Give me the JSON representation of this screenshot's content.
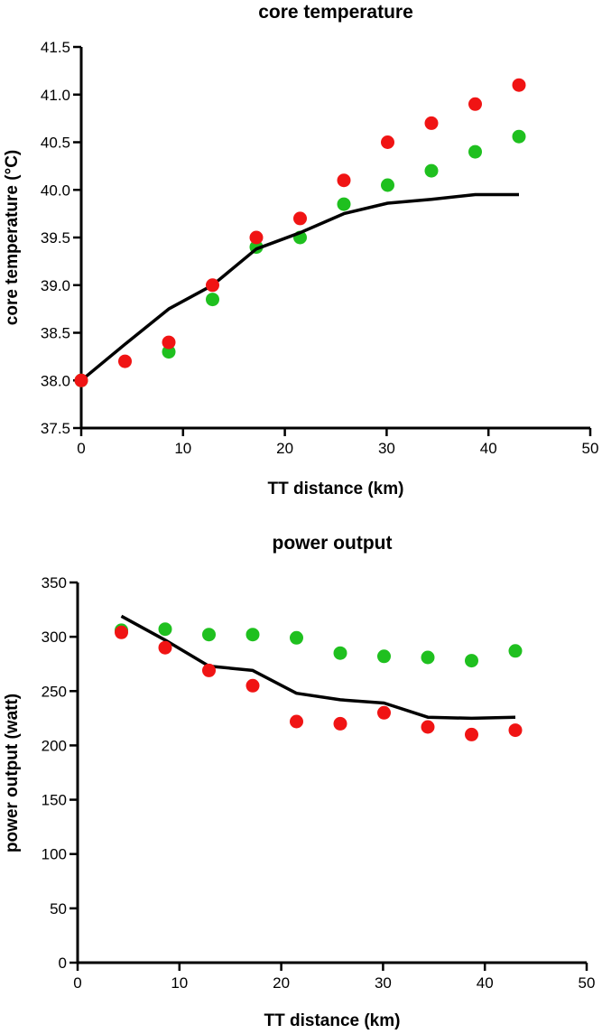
{
  "colors": {
    "green": "#1fc01f",
    "red": "#f01414",
    "line": "#000000"
  },
  "chart_data": [
    {
      "type": "scatter",
      "title": "core temperature",
      "xlabel": "TT distance (km)",
      "ylabel": "core temperature (°C)",
      "xlim": [
        0,
        50
      ],
      "ylim": [
        37.5,
        41.5
      ],
      "xticks": [
        "0",
        "10",
        "20",
        "30",
        "40",
        "50"
      ],
      "yticks": [
        "37.5",
        "38.0",
        "38.5",
        "39.0",
        "39.5",
        "40.0",
        "40.5",
        "41.0",
        "41.5"
      ],
      "series": [
        {
          "name": "green",
          "kind": "points",
          "x": [
            0,
            8.6,
            12.9,
            17.2,
            21.5,
            25.8,
            30.1,
            34.4,
            38.7,
            43
          ],
          "y": [
            38.0,
            38.3,
            38.85,
            39.4,
            39.5,
            39.85,
            40.05,
            40.2,
            40.4,
            40.56
          ]
        },
        {
          "name": "red",
          "kind": "points",
          "x": [
            0,
            4.3,
            8.6,
            12.9,
            17.2,
            21.5,
            25.8,
            30.1,
            34.4,
            38.7,
            43
          ],
          "y": [
            38.0,
            38.2,
            38.4,
            39.0,
            39.5,
            39.7,
            40.1,
            40.5,
            40.7,
            40.9,
            41.1
          ]
        },
        {
          "name": "model",
          "kind": "line",
          "x": [
            0,
            4.3,
            8.6,
            12.9,
            17.2,
            21.5,
            25.8,
            30.1,
            34.4,
            38.7,
            43
          ],
          "y": [
            38.0,
            38.38,
            38.75,
            39.0,
            39.38,
            39.55,
            39.75,
            39.86,
            39.9,
            39.95,
            39.95
          ]
        }
      ]
    },
    {
      "type": "scatter",
      "title": "power output",
      "xlabel": "TT distance (km)",
      "ylabel": "power output  (watt)",
      "xlim": [
        0,
        50
      ],
      "ylim": [
        0,
        350
      ],
      "xticks": [
        "0",
        "10",
        "20",
        "30",
        "40",
        "50"
      ],
      "yticks": [
        "0",
        "50",
        "100",
        "150",
        "200",
        "250",
        "300",
        "350"
      ],
      "series": [
        {
          "name": "green",
          "kind": "points",
          "x": [
            4.3,
            8.6,
            12.9,
            17.2,
            21.5,
            25.8,
            30.1,
            34.4,
            38.7,
            43
          ],
          "y": [
            306,
            307,
            302,
            302,
            299,
            285,
            282,
            281,
            278,
            287
          ]
        },
        {
          "name": "red",
          "kind": "points",
          "x": [
            4.3,
            8.6,
            12.9,
            17.2,
            21.5,
            25.8,
            30.1,
            34.4,
            38.7,
            43
          ],
          "y": [
            304,
            290,
            269,
            255,
            222,
            220,
            230,
            217,
            210,
            214
          ]
        },
        {
          "name": "model",
          "kind": "line",
          "x": [
            4.3,
            8.6,
            12.9,
            17.2,
            21.5,
            25.8,
            30.1,
            34.4,
            38.7,
            43
          ],
          "y": [
            319,
            297,
            273,
            269,
            248,
            242,
            239,
            226,
            225,
            226
          ]
        }
      ]
    }
  ]
}
